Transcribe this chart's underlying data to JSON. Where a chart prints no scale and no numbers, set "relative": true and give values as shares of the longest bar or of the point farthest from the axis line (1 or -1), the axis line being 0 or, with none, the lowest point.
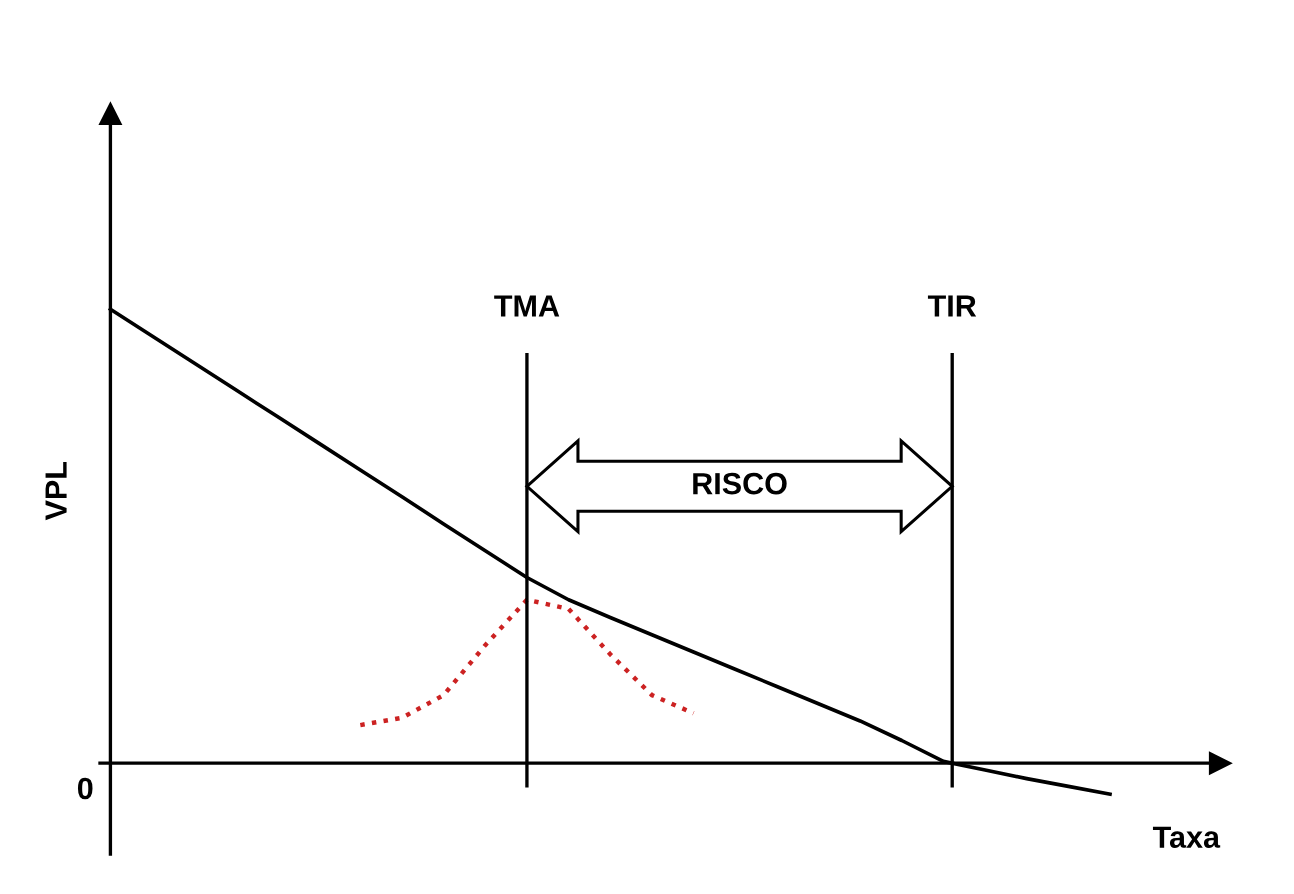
{
  "chart_data": {
    "type": "line",
    "relative": true,
    "xlabel": "Taxa",
    "ylabel": "VPL",
    "categories": [
      null,
      null,
      null,
      null,
      null,
      null,
      null,
      null,
      null,
      null,
      null,
      null,
      null,
      null,
      null,
      null,
      null,
      null,
      null,
      null,
      null,
      null,
      null,
      null,
      null
    ],
    "series": [
      {
        "color": "#000000",
        "line_style": "solid",
        "values": [
          1.0,
          0.941,
          0.882,
          0.823,
          0.764,
          0.705,
          0.646,
          0.587,
          0.527,
          0.468,
          0.409,
          0.36,
          0.321,
          0.283,
          0.245,
          0.207,
          0.169,
          0.131,
          0.093,
          0.05,
          0.004,
          -0.015,
          -0.034,
          -0.051,
          -0.068
        ]
      },
      {
        "color": "#cc2222",
        "line_style": "dotted",
        "values": [
          null,
          null,
          null,
          null,
          null,
          null,
          0.084,
          0.1,
          0.15,
          0.26,
          0.36,
          0.34,
          0.24,
          0.15,
          0.11,
          null,
          null,
          null,
          null,
          null,
          null,
          null,
          null,
          null,
          null
        ]
      }
    ],
    "annotations": [
      "TMA",
      "TIR",
      "RISCO",
      "0"
    ],
    "grid": false,
    "marker": "none"
  }
}
